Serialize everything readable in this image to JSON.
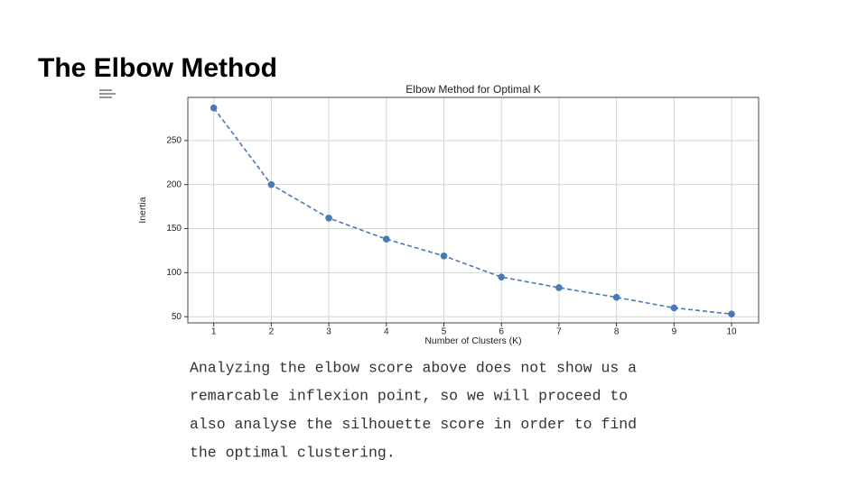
{
  "slide": {
    "title": "The Elbow Method",
    "body": [
      "Analyzing the elbow score above does not show us a",
      "remarcable inflexion point, so we will proceed to",
      "also analyse the silhouette score in order to find",
      "the optimal clustering."
    ]
  },
  "chart_data": {
    "type": "line",
    "title": "Elbow Method for Optimal K",
    "x_label": "Number of Clusters (K)",
    "y_label": "Inertia",
    "x": [
      1,
      2,
      3,
      4,
      5,
      6,
      7,
      8,
      9,
      10
    ],
    "series": [
      {
        "color": "#4a7ab5",
        "values": [
          287,
          200,
          162,
          138,
          119,
          95,
          83,
          72,
          60,
          53
        ]
      }
    ],
    "xlim": [
      0.55,
      10.47
    ],
    "ylim": [
      43,
      299
    ],
    "xticks": [
      1,
      2,
      3,
      4,
      5,
      6,
      7,
      8,
      9,
      10
    ],
    "yticks": [
      50,
      100,
      150,
      200,
      250
    ],
    "grid": true,
    "line_style": "dashed",
    "markers": true
  }
}
